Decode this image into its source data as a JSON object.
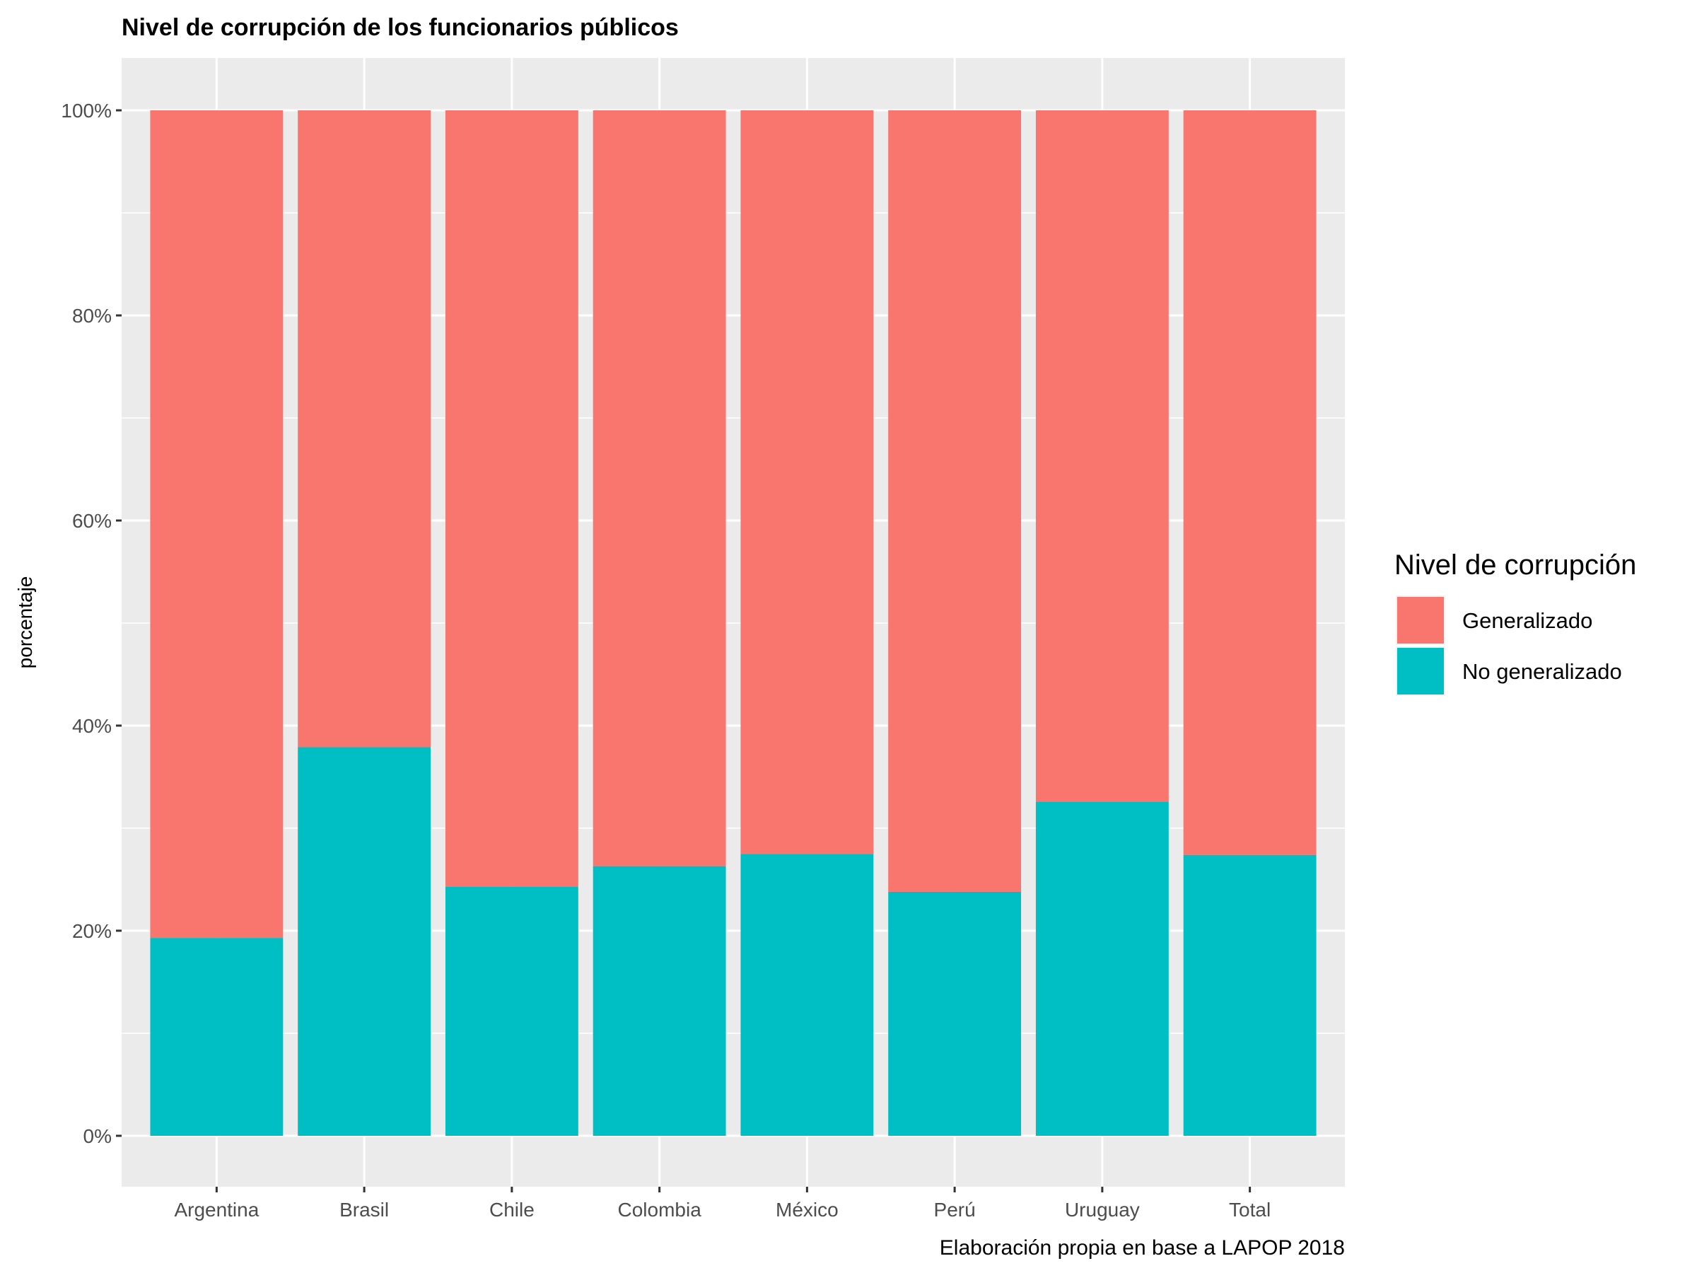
{
  "chart_data": {
    "type": "bar",
    "stacked": true,
    "title": "Nivel de corrupción de los funcionarios públicos",
    "xlabel": "",
    "ylabel": "porcentaje",
    "caption": "Elaboración propia en base a LAPOP 2018",
    "categories": [
      "Argentina",
      "Brasil",
      "Chile",
      "Colombia",
      "México",
      "Perú",
      "Uruguay",
      "Total"
    ],
    "series": [
      {
        "name": "No generalizado",
        "color": "#00BFC4",
        "values": [
          19.3,
          37.9,
          24.3,
          26.3,
          27.5,
          23.8,
          32.6,
          27.4
        ]
      },
      {
        "name": "Generalizado",
        "color": "#F8766D",
        "values": [
          80.7,
          62.1,
          75.7,
          73.7,
          72.5,
          76.2,
          67.4,
          72.6
        ]
      }
    ],
    "ylim": [
      0,
      100
    ],
    "yticks": [
      0,
      20,
      40,
      60,
      80,
      100
    ],
    "ytick_labels": [
      "0%",
      "20%",
      "40%",
      "60%",
      "80%",
      "100%"
    ],
    "grid": true,
    "legend": {
      "title": "Nivel de corrupción",
      "position": "right",
      "items": [
        {
          "label": "Generalizado",
          "color": "#F8766D"
        },
        {
          "label": "No generalizado",
          "color": "#00BFC4"
        }
      ]
    }
  }
}
